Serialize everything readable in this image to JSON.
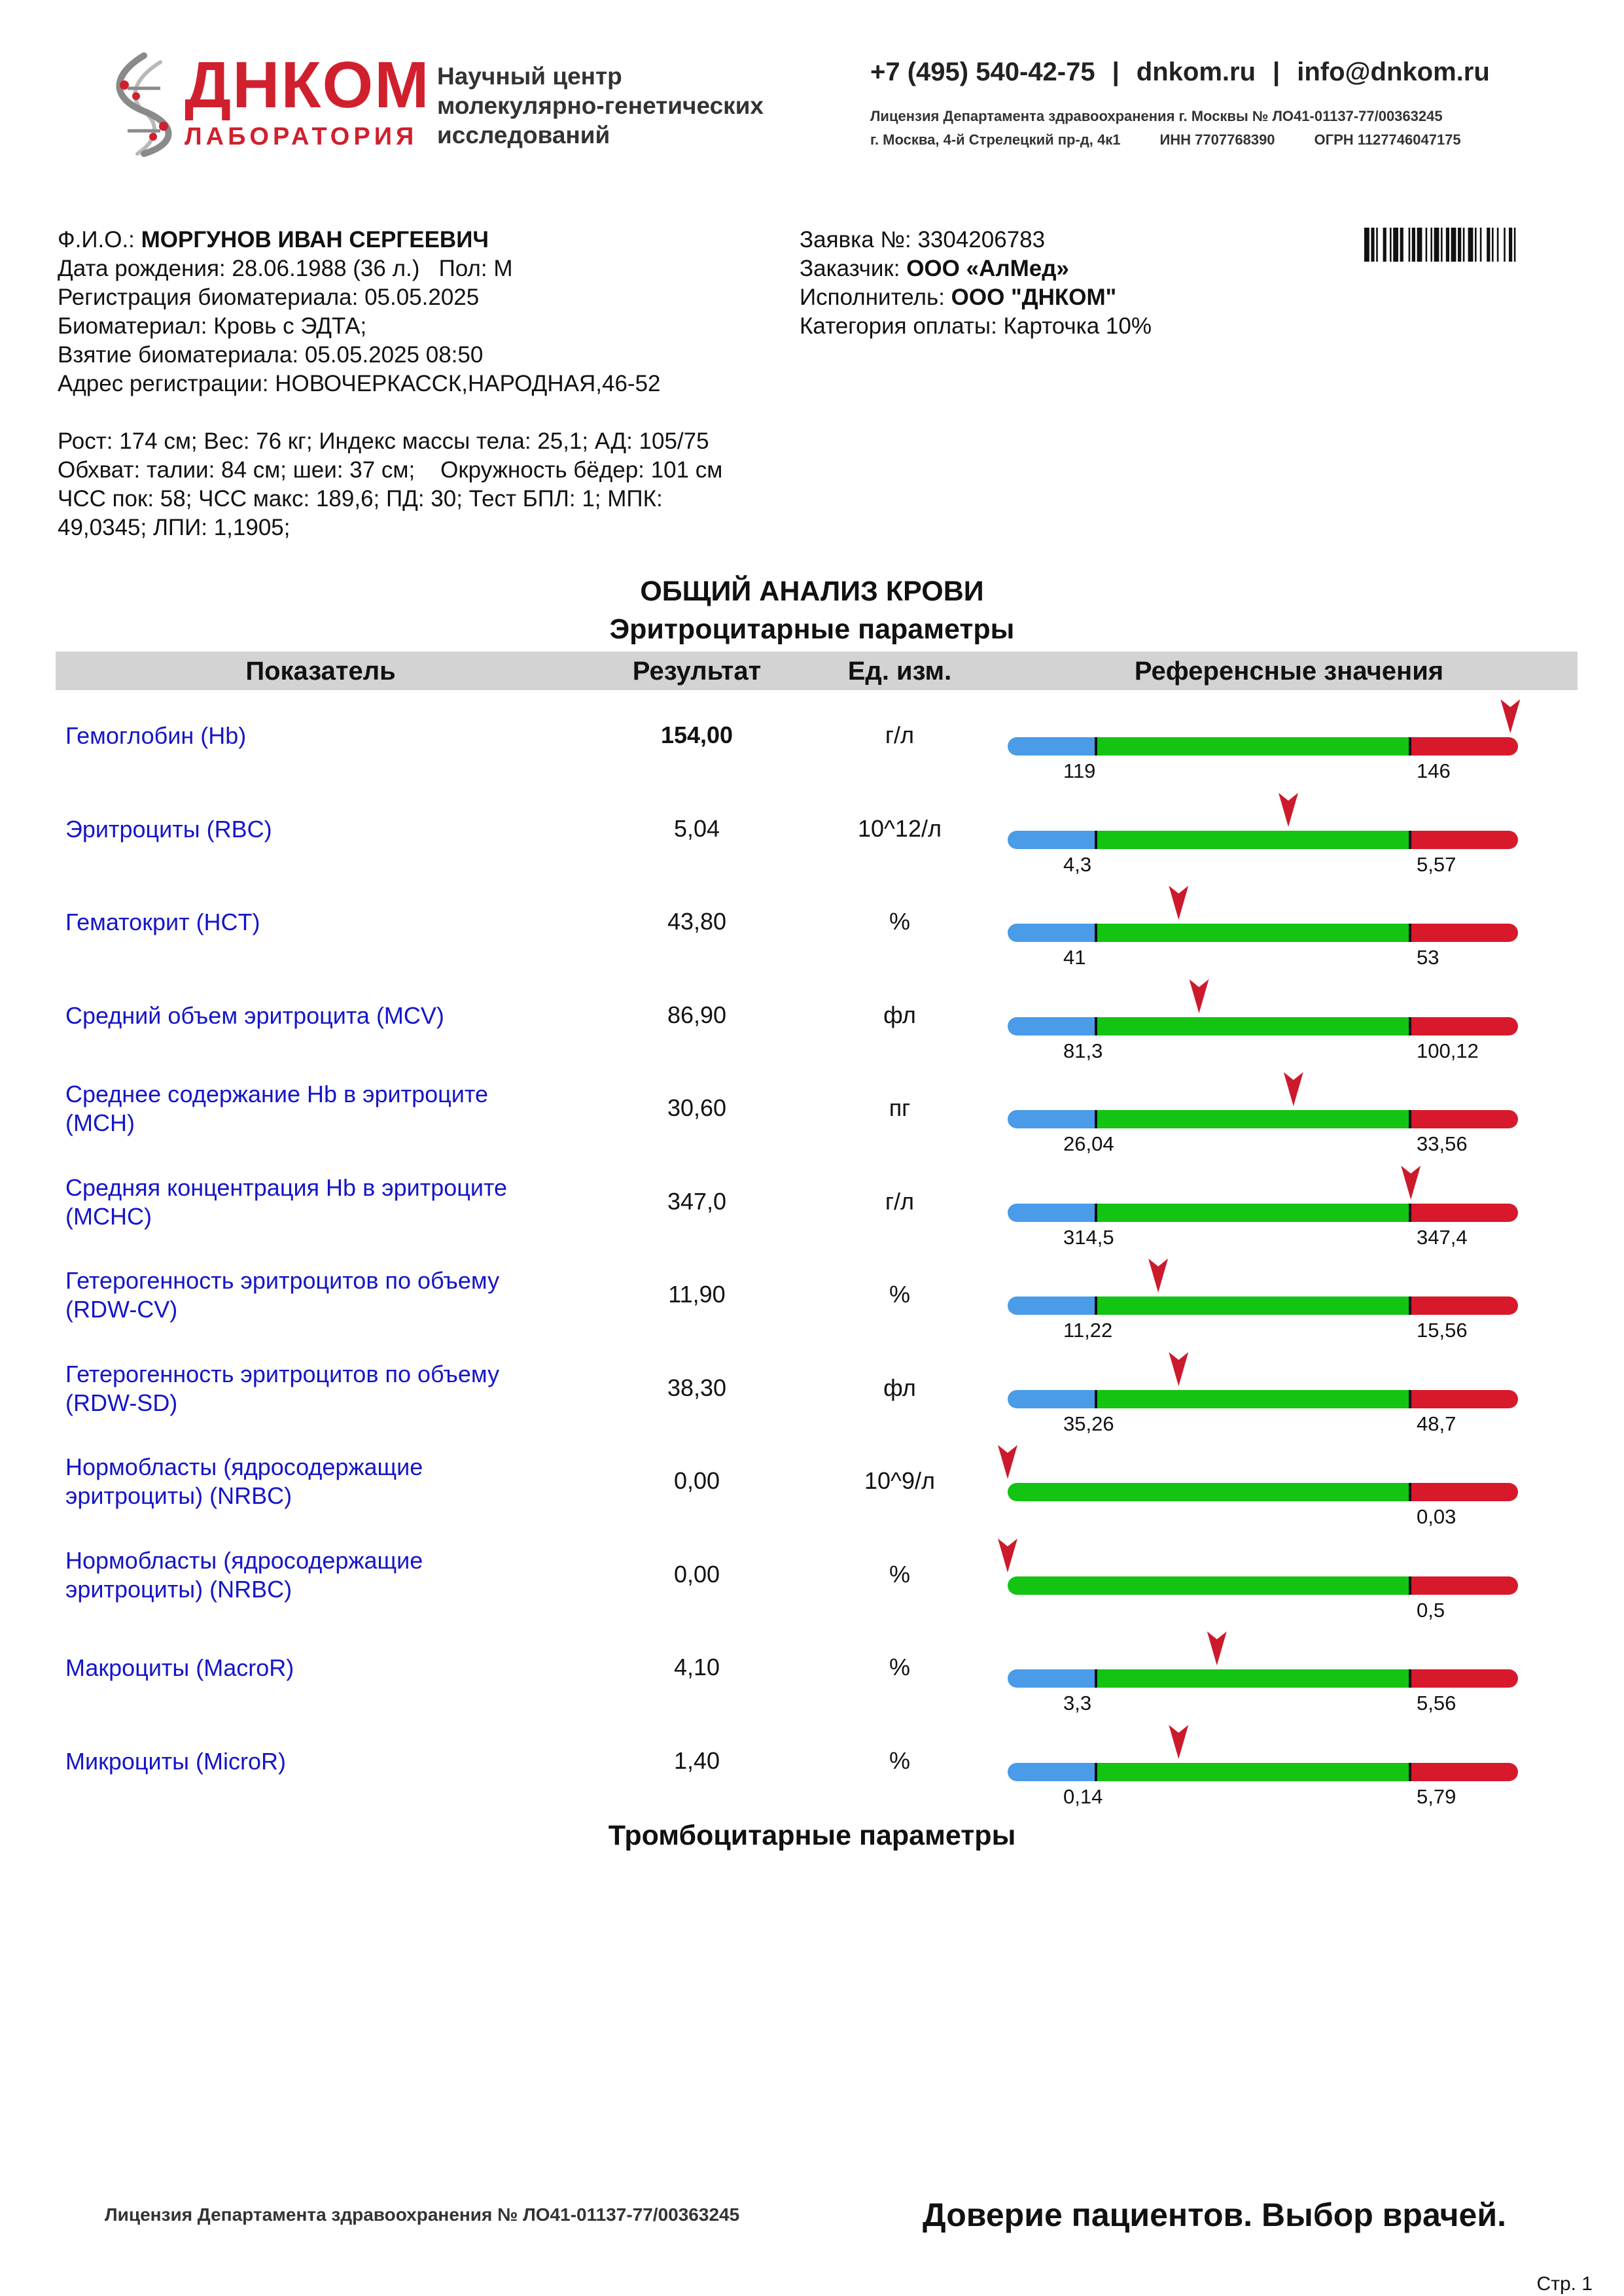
{
  "header": {
    "logo_name": "ДНКОМ",
    "logo_sub": "ЛАБОРАТОРИЯ",
    "center_lines": [
      "Научный центр",
      "молекулярно-генетических",
      "исследований"
    ],
    "phone": "+7 (495) 540-42-75",
    "site": "dnkom.ru",
    "email": "info@dnkom.ru",
    "separator": "|",
    "license_line": "Лицензия Департамента здравоохранения г. Москвы № ЛО41-01137-77/00363245",
    "address": "г. Москва, 4-й Стрелецкий пр-д, 4к1",
    "inn": "ИНН 7707768390",
    "ogrn": "ОГРН 1127746047175",
    "colors": {
      "brand_red": "#d0202e",
      "logo_gray": "#8a8a8a"
    }
  },
  "patient": {
    "fio_label": "Ф.И.О.:",
    "fio": "МОРГУНОВ ИВАН СЕРГЕЕВИЧ",
    "birth_label": "Дата рождения:",
    "birth": "28.06.1988",
    "age": "(36 л.)",
    "sex_label": "Пол:",
    "sex": "М",
    "registration": "Регистрация биоматериала: 05.05.2025",
    "biomaterial": "Биоматериал: Кровь с ЭДТА;",
    "sampling": "Взятие биоматериала: 05.05.2025 08:50",
    "address": "Адрес регистрации: НОВОЧЕРКАССК,НАРОДНАЯ,46-52"
  },
  "order": {
    "number_label": "Заявка №:",
    "number": "3304206783",
    "customer_label": "Заказчик:",
    "customer": "ООО «АлМед»",
    "executor_label": "Исполнитель:",
    "executor": "ООО \"ДНКОМ\"",
    "payment": "Категория оплаты: Карточка 10%"
  },
  "anthropometry": [
    "Рост: 174 см; Вес: 76 кг; Индекс массы тела: 25,1; АД: 105/75",
    "Обхват: талии: 84 см; шеи: 37 см;    Окружность бёдер: 101 см",
    "ЧСС пок: 58; ЧСС макс: 189,6; ПД: 30; Тест БПЛ: 1; МПК:",
    "49,0345; ЛПИ: 1,1905;"
  ],
  "report": {
    "title": "ОБЩИЙ АНАЛИЗ КРОВИ",
    "section1": "Эритроцитарные параметры",
    "section2": "Тромбоцитарные параметры"
  },
  "table": {
    "col_param": "Показатель",
    "col_result": "Результат",
    "col_unit": "Ед. изм.",
    "col_ref": "Референсные значения"
  },
  "ref_colors": {
    "low": "#4a9be8",
    "normal": "#13c413",
    "high": "#d8192b",
    "marker": "#cc1a2c"
  },
  "rows": [
    {
      "name": [
        "Гемоглобин (Hb)"
      ],
      "result": "154,00",
      "bold": true,
      "unit": "г/л",
      "low": "119",
      "high": "146",
      "has_low": true,
      "marker": 0.985
    },
    {
      "name": [
        "Эритроциты (RBC)"
      ],
      "result": "5,04",
      "bold": false,
      "unit": "10^12/л",
      "low": "4,3",
      "high": "5,57",
      "has_low": true,
      "marker": 0.55
    },
    {
      "name": [
        "Гематокрит (HCT)"
      ],
      "result": "43,80",
      "bold": false,
      "unit": "%",
      "low": "41",
      "high": "53",
      "has_low": true,
      "marker": 0.335
    },
    {
      "name": [
        "Средний объем эритроцита (MCV)"
      ],
      "result": "86,90",
      "bold": false,
      "unit": "фл",
      "low": "81,3",
      "high": "100,12",
      "has_low": true,
      "marker": 0.375
    },
    {
      "name": [
        "Среднее содержание Hb в эритроците",
        "(MCH)"
      ],
      "result": "30,60",
      "bold": false,
      "unit": "пг",
      "low": "26,04",
      "high": "33,56",
      "has_low": true,
      "marker": 0.56
    },
    {
      "name": [
        "Средняя концентрация Hb в эритроците",
        "(MCHC)"
      ],
      "result": "347,0",
      "bold": false,
      "unit": "г/л",
      "low": "314,5",
      "high": "347,4",
      "has_low": true,
      "marker": 0.79
    },
    {
      "name": [
        "Гетерогенность эритроцитов по объему",
        "(RDW-CV)"
      ],
      "result": "11,90",
      "bold": false,
      "unit": "%",
      "low": "11,22",
      "high": "15,56",
      "has_low": true,
      "marker": 0.295
    },
    {
      "name": [
        "Гетерогенность эритроцитов по объему",
        "(RDW-SD)"
      ],
      "result": "38,30",
      "bold": false,
      "unit": "фл",
      "low": "35,26",
      "high": "48,7",
      "has_low": true,
      "marker": 0.335
    },
    {
      "name": [
        "Нормобласты (ядросодержащие",
        "эритроциты) (NRBC)"
      ],
      "result": "0,00",
      "bold": false,
      "unit": "10^9/л",
      "low": "",
      "high": "0,03",
      "has_low": false,
      "marker": 0.0
    },
    {
      "name": [
        "Нормобласты (ядросодержащие",
        "эритроциты) (NRBC)"
      ],
      "result": "0,00",
      "bold": false,
      "unit": "%",
      "low": "",
      "high": "0,5",
      "has_low": false,
      "marker": 0.0
    },
    {
      "name": [
        "Макроциты (MacroR)"
      ],
      "result": "4,10",
      "bold": false,
      "unit": "%",
      "low": "3,3",
      "high": "5,56",
      "has_low": true,
      "marker": 0.41
    },
    {
      "name": [
        "Микроциты (MicroR)"
      ],
      "result": "1,40",
      "bold": false,
      "unit": "%",
      "low": "0,14",
      "high": "5,79",
      "has_low": true,
      "marker": 0.335
    }
  ],
  "footer": {
    "license": "Лицензия Департамента здравоохранения № ЛО41-01137-77/00363245",
    "slogan": "Доверие пациентов. Выбор врачей.",
    "page": "Стр. 1"
  }
}
